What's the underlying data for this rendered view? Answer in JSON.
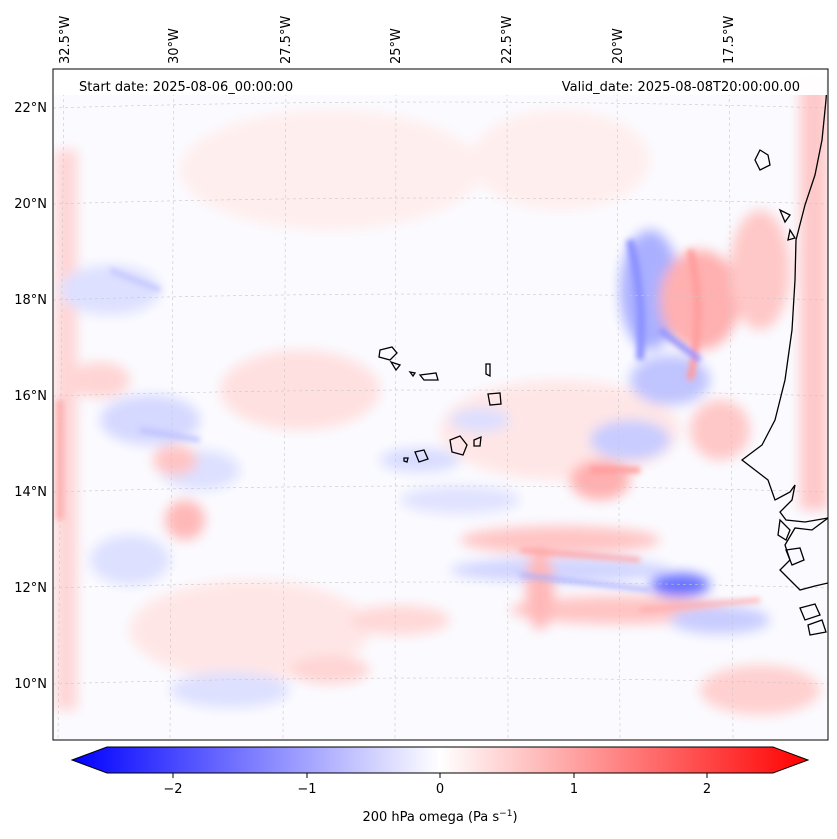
{
  "header": {
    "start_date": "Start date: 2025-08-06_00:00:00",
    "valid_date": "Valid_date: 2025-08-08T20:00:00.00"
  },
  "map": {
    "longitude_labels": [
      "32.5°W",
      "30°W",
      "27.5°W",
      "25°W",
      "22.5°W",
      "20°W",
      "17.5°W"
    ],
    "latitude_labels": [
      "22°N",
      "20°N",
      "18°N",
      "16°N",
      "14°N",
      "12°N",
      "10°N"
    ],
    "field": "200 hPa omega",
    "colors": {
      "negative": "#0000ff",
      "zero": "#ffffff",
      "positive": "#ff0000",
      "coast": "#000000"
    }
  },
  "colorbar": {
    "label_main": "200 hPa omega (Pa s",
    "label_exp": "−1",
    "label_close": ")",
    "ticks": [
      "−2",
      "−1",
      "0",
      "1",
      "2"
    ],
    "min": -2.6,
    "max": 2.6
  }
}
